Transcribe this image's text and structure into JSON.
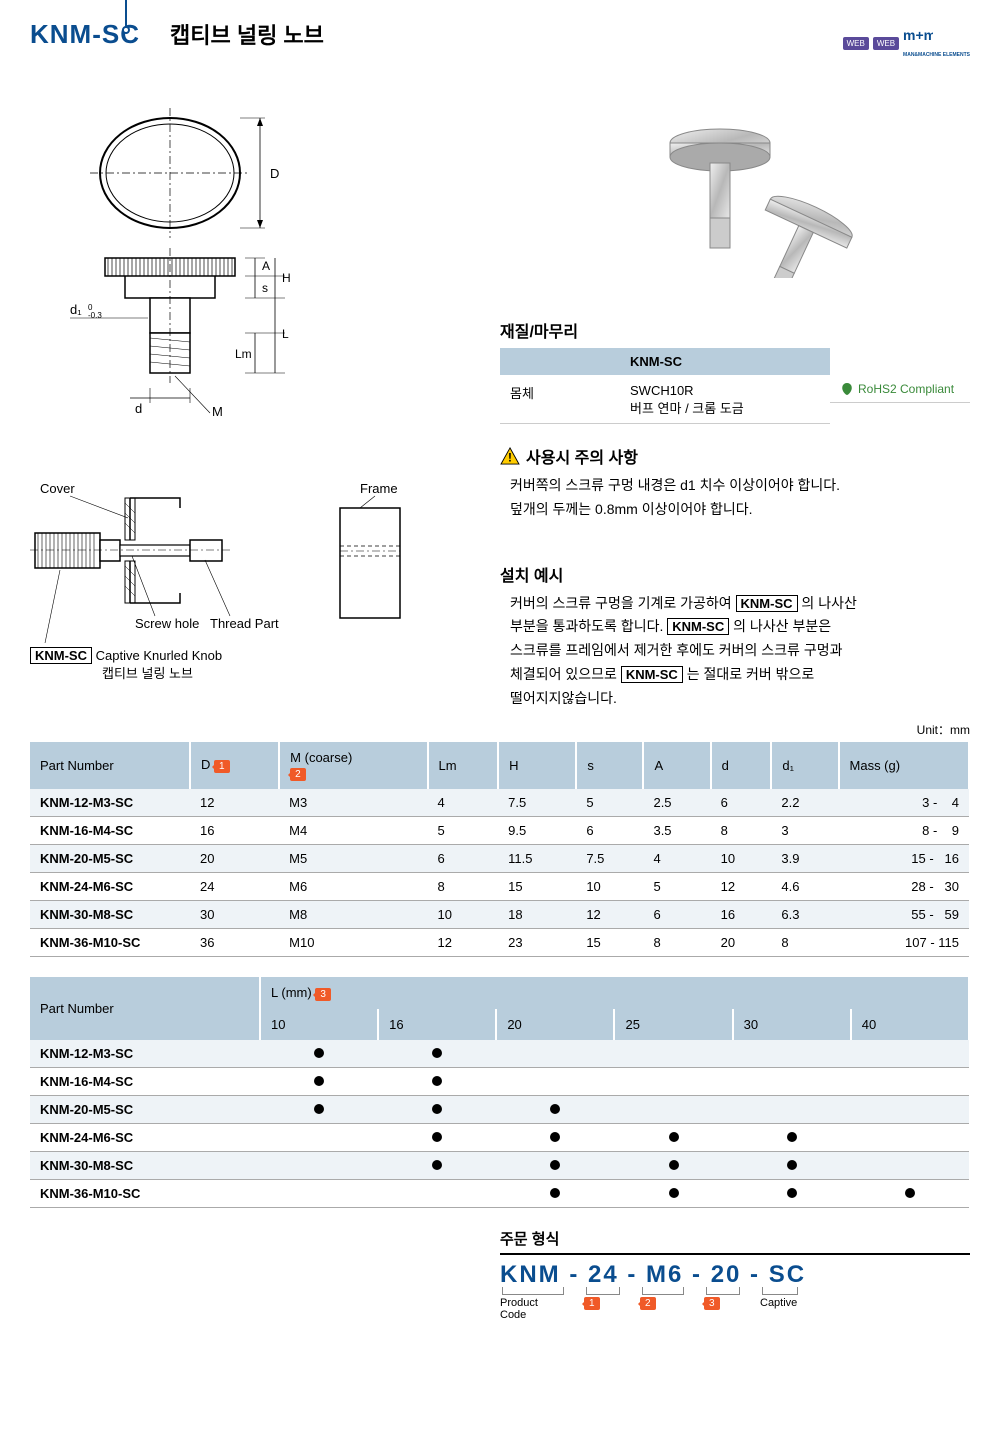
{
  "header": {
    "code": "KNM-SC",
    "title_kr": "캡티브 널링 노브",
    "badges": [
      "WEB",
      "WEB"
    ],
    "logo": "MAN&MACHINE ELEMENTS"
  },
  "material": {
    "section_title": "재질/마무리",
    "col_header": "KNM-SC",
    "row_label": "몸체",
    "line1": "SWCH10R",
    "line2": "버프 연마 / 크롬 도금",
    "rohs": "RoHS2 Compliant"
  },
  "warning": {
    "title": "사용시 주의 사항",
    "line1": "커버쪽의 스크류 구멍 내경은 d1 치수 이상이어야 합니다.",
    "line2": "덮개의 두께는 0.8mm 이상이어야 합니다."
  },
  "install": {
    "title": "설치 예시",
    "text1a": "커버의 스크류 구멍을 기계로 가공하여 ",
    "code1": "KNM-SC",
    "text1b": " 의 나사산",
    "text2a": "부분을 통과하도록 합니다. ",
    "code2": "KNM-SC",
    "text2b": " 의 나사산 부분은",
    "text3": "스크류를 프레임에서 제거한 후에도 커버의 스크류 구멍과",
    "text4a": "체결되어 있으므로 ",
    "code3": "KNM-SC",
    "text4b": " 는 절대로 커버 밖으로",
    "text5": "떨어지지않습니다."
  },
  "diagram_labels": {
    "D": "D",
    "A": "A",
    "H": "H",
    "s": "s",
    "d1": "d₁",
    "d1_tol": "0\n-0.3",
    "L": "L",
    "Lm": "Lm",
    "d": "d",
    "M": "M",
    "cover": "Cover",
    "frame": "Frame",
    "screw_hole": "Screw hole",
    "thread_part": "Thread Part",
    "knm_sc": "KNM-SC",
    "caption_en": "Captive Knurled Knob",
    "caption_kr": "캡티브 널링 노브"
  },
  "unit_label": "Unit：mm",
  "table1": {
    "headers": [
      "Part Number",
      "D",
      "M (coarse)",
      "Lm",
      "H",
      "s",
      "A",
      "d",
      "d₁",
      "Mass (g)"
    ],
    "tags": {
      "D": "1",
      "M": "2"
    },
    "rows": [
      [
        "KNM-12-M3-SC",
        "12",
        "M3",
        "4",
        "7.5",
        "5",
        "2.5",
        "6",
        "2.2",
        "3 -    4"
      ],
      [
        "KNM-16-M4-SC",
        "16",
        "M4",
        "5",
        "9.5",
        "6",
        "3.5",
        "8",
        "3",
        "8 -    9"
      ],
      [
        "KNM-20-M5-SC",
        "20",
        "M5",
        "6",
        "11.5",
        "7.5",
        "4",
        "10",
        "3.9",
        "15 -   16"
      ],
      [
        "KNM-24-M6-SC",
        "24",
        "M6",
        "8",
        "15",
        "10",
        "5",
        "12",
        "4.6",
        "28 -   30"
      ],
      [
        "KNM-30-M8-SC",
        "30",
        "M8",
        "10",
        "18",
        "12",
        "6",
        "16",
        "6.3",
        "55 -   59"
      ],
      [
        "KNM-36-M10-SC",
        "36",
        "M10",
        "12",
        "23",
        "15",
        "8",
        "20",
        "8",
        "107 - 115"
      ]
    ]
  },
  "table2": {
    "pn_header": "Part Number",
    "l_header": "L (mm)",
    "l_tag": "3",
    "l_values": [
      "10",
      "16",
      "20",
      "25",
      "30",
      "40"
    ],
    "rows": [
      {
        "pn": "KNM-12-M3-SC",
        "dots": [
          true,
          true,
          false,
          false,
          false,
          false
        ]
      },
      {
        "pn": "KNM-16-M4-SC",
        "dots": [
          true,
          true,
          false,
          false,
          false,
          false
        ]
      },
      {
        "pn": "KNM-20-M5-SC",
        "dots": [
          true,
          true,
          true,
          false,
          false,
          false
        ]
      },
      {
        "pn": "KNM-24-M6-SC",
        "dots": [
          false,
          true,
          true,
          true,
          true,
          false
        ]
      },
      {
        "pn": "KNM-30-M8-SC",
        "dots": [
          false,
          true,
          true,
          true,
          true,
          false
        ]
      },
      {
        "pn": "KNM-36-M10-SC",
        "dots": [
          false,
          false,
          true,
          true,
          true,
          true
        ]
      }
    ]
  },
  "order": {
    "title": "주문 형식",
    "parts": [
      "KNM",
      " - ",
      "24",
      " - ",
      "M6",
      " - ",
      "20",
      " - ",
      "SC"
    ],
    "labels": [
      "Product\nCode",
      "1",
      "2",
      "3",
      "Captive"
    ]
  },
  "colors": {
    "brand": "#0a4d8f",
    "th_bg": "#b8cddc",
    "alt_bg": "#eef3f7",
    "tag_bg": "#f05a28",
    "rohs": "#3a8a3a"
  }
}
